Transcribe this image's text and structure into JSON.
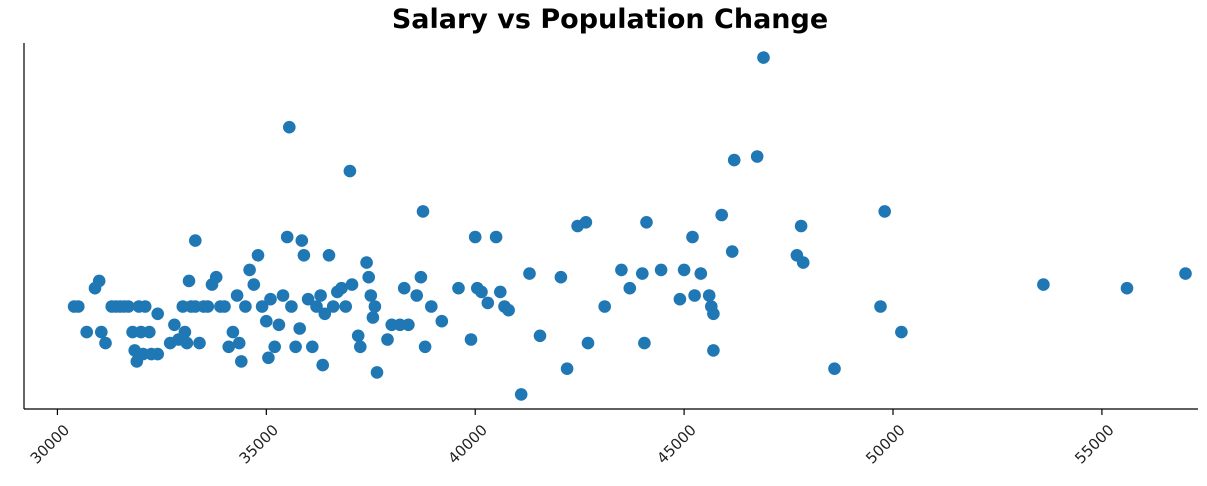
{
  "chart_data": {
    "type": "scatter",
    "title": "Salary vs Population Change",
    "xlabel": "",
    "ylabel": "",
    "xlim": [
      29200,
      57300
    ],
    "ylim": [
      0,
      1
    ],
    "x_ticks": [
      "30000",
      "35000",
      "40000",
      "45000",
      "50000",
      "55000"
    ],
    "y_axis_ticks_shown": false,
    "grid": false,
    "point_color": "#1f77b4",
    "points": [
      {
        "x": 30400,
        "y": 0.28
      },
      {
        "x": 30500,
        "y": 0.28
      },
      {
        "x": 30700,
        "y": 0.21
      },
      {
        "x": 30900,
        "y": 0.33
      },
      {
        "x": 31000,
        "y": 0.35
      },
      {
        "x": 31050,
        "y": 0.21
      },
      {
        "x": 31150,
        "y": 0.18
      },
      {
        "x": 31300,
        "y": 0.28
      },
      {
        "x": 31400,
        "y": 0.28
      },
      {
        "x": 31500,
        "y": 0.28
      },
      {
        "x": 31600,
        "y": 0.28
      },
      {
        "x": 31700,
        "y": 0.28
      },
      {
        "x": 31800,
        "y": 0.21
      },
      {
        "x": 31850,
        "y": 0.16
      },
      {
        "x": 31900,
        "y": 0.13
      },
      {
        "x": 31950,
        "y": 0.28
      },
      {
        "x": 32000,
        "y": 0.21
      },
      {
        "x": 32050,
        "y": 0.15
      },
      {
        "x": 32100,
        "y": 0.28
      },
      {
        "x": 32200,
        "y": 0.21
      },
      {
        "x": 32250,
        "y": 0.15
      },
      {
        "x": 32400,
        "y": 0.26
      },
      {
        "x": 32400,
        "y": 0.15
      },
      {
        "x": 32700,
        "y": 0.18
      },
      {
        "x": 32800,
        "y": 0.23
      },
      {
        "x": 32900,
        "y": 0.19
      },
      {
        "x": 33000,
        "y": 0.28
      },
      {
        "x": 33050,
        "y": 0.21
      },
      {
        "x": 33100,
        "y": 0.18
      },
      {
        "x": 33150,
        "y": 0.35
      },
      {
        "x": 33200,
        "y": 0.28
      },
      {
        "x": 33300,
        "y": 0.46
      },
      {
        "x": 33300,
        "y": 0.28
      },
      {
        "x": 33400,
        "y": 0.18
      },
      {
        "x": 33500,
        "y": 0.28
      },
      {
        "x": 33600,
        "y": 0.28
      },
      {
        "x": 33700,
        "y": 0.34
      },
      {
        "x": 33800,
        "y": 0.36
      },
      {
        "x": 33900,
        "y": 0.28
      },
      {
        "x": 34000,
        "y": 0.28
      },
      {
        "x": 34100,
        "y": 0.17
      },
      {
        "x": 34200,
        "y": 0.21
      },
      {
        "x": 34300,
        "y": 0.31
      },
      {
        "x": 34350,
        "y": 0.18
      },
      {
        "x": 34400,
        "y": 0.13
      },
      {
        "x": 34500,
        "y": 0.28
      },
      {
        "x": 34600,
        "y": 0.38
      },
      {
        "x": 34700,
        "y": 0.34
      },
      {
        "x": 34800,
        "y": 0.42
      },
      {
        "x": 34900,
        "y": 0.28
      },
      {
        "x": 35000,
        "y": 0.24
      },
      {
        "x": 35050,
        "y": 0.14
      },
      {
        "x": 35100,
        "y": 0.3
      },
      {
        "x": 35200,
        "y": 0.17
      },
      {
        "x": 35300,
        "y": 0.23
      },
      {
        "x": 35400,
        "y": 0.31
      },
      {
        "x": 35500,
        "y": 0.47
      },
      {
        "x": 35550,
        "y": 0.77
      },
      {
        "x": 35600,
        "y": 0.28
      },
      {
        "x": 35700,
        "y": 0.17
      },
      {
        "x": 35800,
        "y": 0.22
      },
      {
        "x": 35850,
        "y": 0.46
      },
      {
        "x": 35900,
        "y": 0.42
      },
      {
        "x": 36000,
        "y": 0.3
      },
      {
        "x": 36100,
        "y": 0.17
      },
      {
        "x": 36200,
        "y": 0.28
      },
      {
        "x": 36300,
        "y": 0.31
      },
      {
        "x": 36350,
        "y": 0.12
      },
      {
        "x": 36400,
        "y": 0.26
      },
      {
        "x": 36500,
        "y": 0.42
      },
      {
        "x": 36600,
        "y": 0.28
      },
      {
        "x": 36700,
        "y": 0.32
      },
      {
        "x": 36800,
        "y": 0.33
      },
      {
        "x": 36900,
        "y": 0.28
      },
      {
        "x": 37000,
        "y": 0.65
      },
      {
        "x": 37050,
        "y": 0.34
      },
      {
        "x": 37200,
        "y": 0.2
      },
      {
        "x": 37250,
        "y": 0.17
      },
      {
        "x": 37400,
        "y": 0.4
      },
      {
        "x": 37450,
        "y": 0.36
      },
      {
        "x": 37500,
        "y": 0.31
      },
      {
        "x": 37550,
        "y": 0.25
      },
      {
        "x": 37600,
        "y": 0.28
      },
      {
        "x": 37650,
        "y": 0.1
      },
      {
        "x": 37900,
        "y": 0.19
      },
      {
        "x": 38000,
        "y": 0.23
      },
      {
        "x": 38200,
        "y": 0.23
      },
      {
        "x": 38300,
        "y": 0.33
      },
      {
        "x": 38400,
        "y": 0.23
      },
      {
        "x": 38600,
        "y": 0.31
      },
      {
        "x": 38700,
        "y": 0.36
      },
      {
        "x": 38750,
        "y": 0.54
      },
      {
        "x": 38800,
        "y": 0.17
      },
      {
        "x": 38950,
        "y": 0.28
      },
      {
        "x": 39200,
        "y": 0.24
      },
      {
        "x": 39600,
        "y": 0.33
      },
      {
        "x": 39900,
        "y": 0.19
      },
      {
        "x": 40000,
        "y": 0.47
      },
      {
        "x": 40050,
        "y": 0.33
      },
      {
        "x": 40150,
        "y": 0.32
      },
      {
        "x": 40300,
        "y": 0.29
      },
      {
        "x": 40500,
        "y": 0.47
      },
      {
        "x": 40600,
        "y": 0.32
      },
      {
        "x": 40700,
        "y": 0.28
      },
      {
        "x": 40800,
        "y": 0.27
      },
      {
        "x": 41100,
        "y": 0.04
      },
      {
        "x": 41300,
        "y": 0.37
      },
      {
        "x": 41550,
        "y": 0.2
      },
      {
        "x": 42050,
        "y": 0.36
      },
      {
        "x": 42200,
        "y": 0.11
      },
      {
        "x": 42450,
        "y": 0.5
      },
      {
        "x": 42650,
        "y": 0.51
      },
      {
        "x": 42700,
        "y": 0.18
      },
      {
        "x": 43100,
        "y": 0.28
      },
      {
        "x": 43500,
        "y": 0.38
      },
      {
        "x": 43700,
        "y": 0.33
      },
      {
        "x": 44000,
        "y": 0.37
      },
      {
        "x": 44050,
        "y": 0.18
      },
      {
        "x": 44100,
        "y": 0.51
      },
      {
        "x": 44450,
        "y": 0.38
      },
      {
        "x": 44900,
        "y": 0.3
      },
      {
        "x": 45000,
        "y": 0.38
      },
      {
        "x": 45200,
        "y": 0.47
      },
      {
        "x": 45250,
        "y": 0.31
      },
      {
        "x": 45400,
        "y": 0.37
      },
      {
        "x": 45600,
        "y": 0.31
      },
      {
        "x": 45650,
        "y": 0.28
      },
      {
        "x": 45700,
        "y": 0.16
      },
      {
        "x": 45700,
        "y": 0.26
      },
      {
        "x": 45900,
        "y": 0.53
      },
      {
        "x": 46150,
        "y": 0.43
      },
      {
        "x": 46200,
        "y": 0.68
      },
      {
        "x": 46750,
        "y": 0.69
      },
      {
        "x": 46900,
        "y": 0.96
      },
      {
        "x": 47700,
        "y": 0.42
      },
      {
        "x": 47800,
        "y": 0.5
      },
      {
        "x": 47850,
        "y": 0.4
      },
      {
        "x": 48600,
        "y": 0.11
      },
      {
        "x": 49700,
        "y": 0.28
      },
      {
        "x": 49800,
        "y": 0.54
      },
      {
        "x": 50200,
        "y": 0.21
      },
      {
        "x": 53600,
        "y": 0.34
      },
      {
        "x": 55600,
        "y": 0.33
      },
      {
        "x": 57000,
        "y": 0.37
      }
    ]
  }
}
